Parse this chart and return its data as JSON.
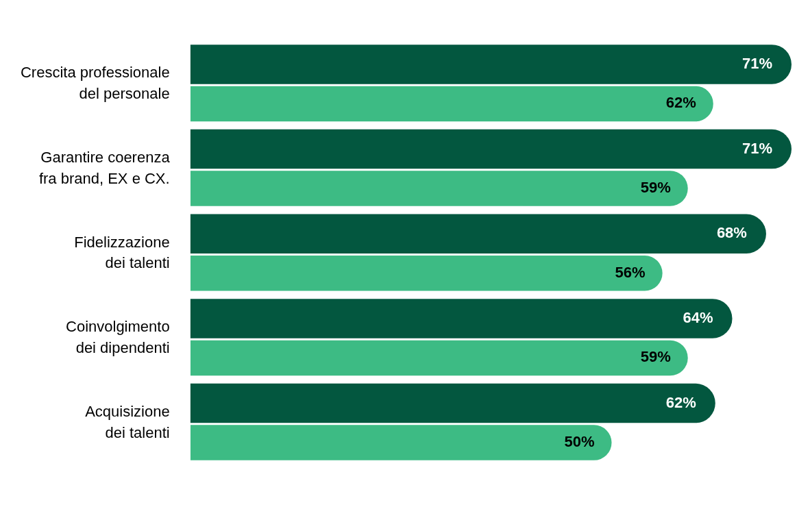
{
  "chart_data": {
    "type": "bar",
    "orientation": "horizontal",
    "categories": [
      "Crescita professionale del personale",
      "Garantire coerenza fra brand, EX e CX.",
      "Fidelizzazione dei talenti",
      "Coinvolgimento dei dipendenti",
      "Acquisizione dei talenti"
    ],
    "series": [
      {
        "color": "#03573f",
        "values": [
          71,
          71,
          68,
          64,
          62
        ],
        "value_labels": [
          "71%",
          "71%",
          "68%",
          "64%",
          "62%"
        ]
      },
      {
        "color": "#3dbb84",
        "values": [
          62,
          59,
          56,
          59,
          50
        ],
        "value_labels": [
          "62%",
          "59%",
          "56%",
          "59%",
          "50%"
        ]
      }
    ],
    "grid": false,
    "legend": false,
    "tick_labels": "y"
  }
}
